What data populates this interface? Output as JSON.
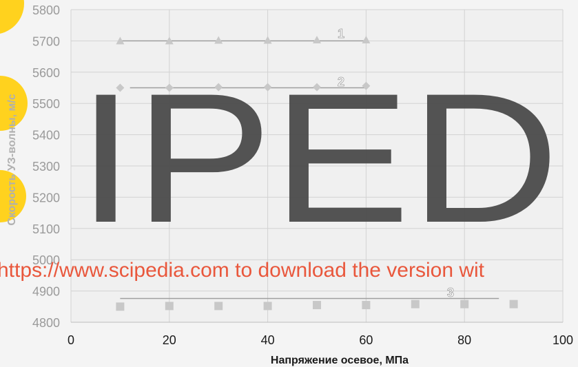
{
  "chart_data": {
    "type": "scatter",
    "x_label": "Напряжение осевое, МПа",
    "y_label": "Скорость  УЗ-волны, м/с",
    "xlim": [
      0,
      100
    ],
    "xticks": [
      0,
      20,
      40,
      60,
      80,
      100
    ],
    "ylim": [
      4800,
      5800
    ],
    "yticks": [
      4800,
      4900,
      5000,
      5100,
      5200,
      5300,
      5400,
      5500,
      5600,
      5700,
      5800
    ],
    "grid": true,
    "series": [
      {
        "label": "1",
        "marker": "triangle",
        "color": "#c8c8c8",
        "x": [
          10,
          20,
          30,
          40,
          50,
          60
        ],
        "values": [
          5700,
          5700,
          5702,
          5702,
          5703,
          5703
        ],
        "trend": {
          "x": [
            10,
            60
          ],
          "values": [
            5700,
            5700
          ]
        }
      },
      {
        "label": "2",
        "marker": "diamond",
        "color": "#c8c8c8",
        "x": [
          10,
          20,
          30,
          40,
          50,
          60
        ],
        "values": [
          5550,
          5550,
          5552,
          5552,
          5552,
          5556
        ],
        "trend": {
          "x": [
            12,
            60
          ],
          "values": [
            5550,
            5550
          ]
        }
      },
      {
        "label": "3",
        "marker": "square",
        "color": "#c8c8c8",
        "x": [
          10,
          20,
          30,
          40,
          50,
          60,
          70,
          80,
          90
        ],
        "values": [
          4850,
          4852,
          4852,
          4852,
          4855,
          4855,
          4858,
          4858,
          4858
        ],
        "trend": {
          "x": [
            10,
            87
          ],
          "values": [
            4876,
            4876
          ]
        }
      }
    ]
  },
  "watermark": {
    "logo": "IPED",
    "banner": "https://www.scipedia.com to download the version wit"
  }
}
